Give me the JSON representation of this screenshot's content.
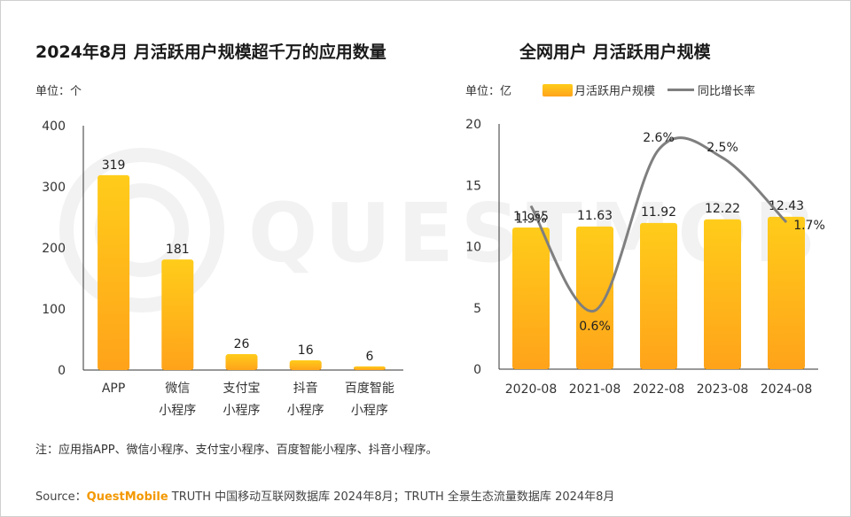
{
  "left_title": "2024年8月 月活跃用户规模超千万的应用数量",
  "left_unit": "单位：个",
  "right_title": "全网用户 月活跃用户规模",
  "right_unit": "单位：亿",
  "legend": {
    "bar": "月活跃用户规模",
    "line": "同比增长率"
  },
  "note": "注：应用指APP、微信小程序、支付宝小程序、百度智能小程序、抖音小程序。",
  "source": {
    "label": "Source：",
    "brand": "QuestMobile",
    "text": " TRUTH 中国移动互联网数据库 2024年8月；TRUTH 全景生态流量数据库 2024年8月"
  },
  "watermark": "QUESTMOBILE",
  "colors": {
    "bar_top": "#ffcc1a",
    "bar_bottom": "#ffa31a",
    "line": "#7f7f7f",
    "axis": "#333333"
  },
  "chart_data": [
    {
      "type": "bar",
      "title": "2024年8月 月活跃用户规模超千万的应用数量",
      "ylabel": "单位：个",
      "categories": [
        [
          "APP"
        ],
        [
          "微信",
          "小程序"
        ],
        [
          "支付宝",
          "小程序"
        ],
        [
          "抖音",
          "小程序"
        ],
        [
          "百度智能",
          "小程序"
        ]
      ],
      "values": [
        319,
        181,
        26,
        16,
        6
      ],
      "ylim": [
        0,
        400
      ],
      "yticks": [
        0,
        100,
        200,
        300,
        400
      ]
    },
    {
      "type": "bar",
      "title": "全网用户 月活跃用户规模",
      "ylabel": "单位：亿",
      "categories": [
        "2020-08",
        "2021-08",
        "2022-08",
        "2023-08",
        "2024-08"
      ],
      "series": [
        {
          "name": "月活跃用户规模",
          "type": "bar",
          "values": [
            11.55,
            11.63,
            11.92,
            12.22,
            12.43
          ],
          "labels": [
            "11.55",
            "11.63",
            "11.92",
            "12.22",
            "12.43"
          ]
        },
        {
          "name": "同比增长率",
          "type": "line",
          "values": [
            1.9,
            0.6,
            2.6,
            2.5,
            1.7
          ],
          "labels": [
            "1.9%",
            "0.6%",
            "2.6%",
            "2.5%",
            "1.7%"
          ]
        }
      ],
      "ylim": [
        0,
        20
      ],
      "yticks": [
        0,
        5,
        10,
        15,
        20
      ]
    }
  ]
}
